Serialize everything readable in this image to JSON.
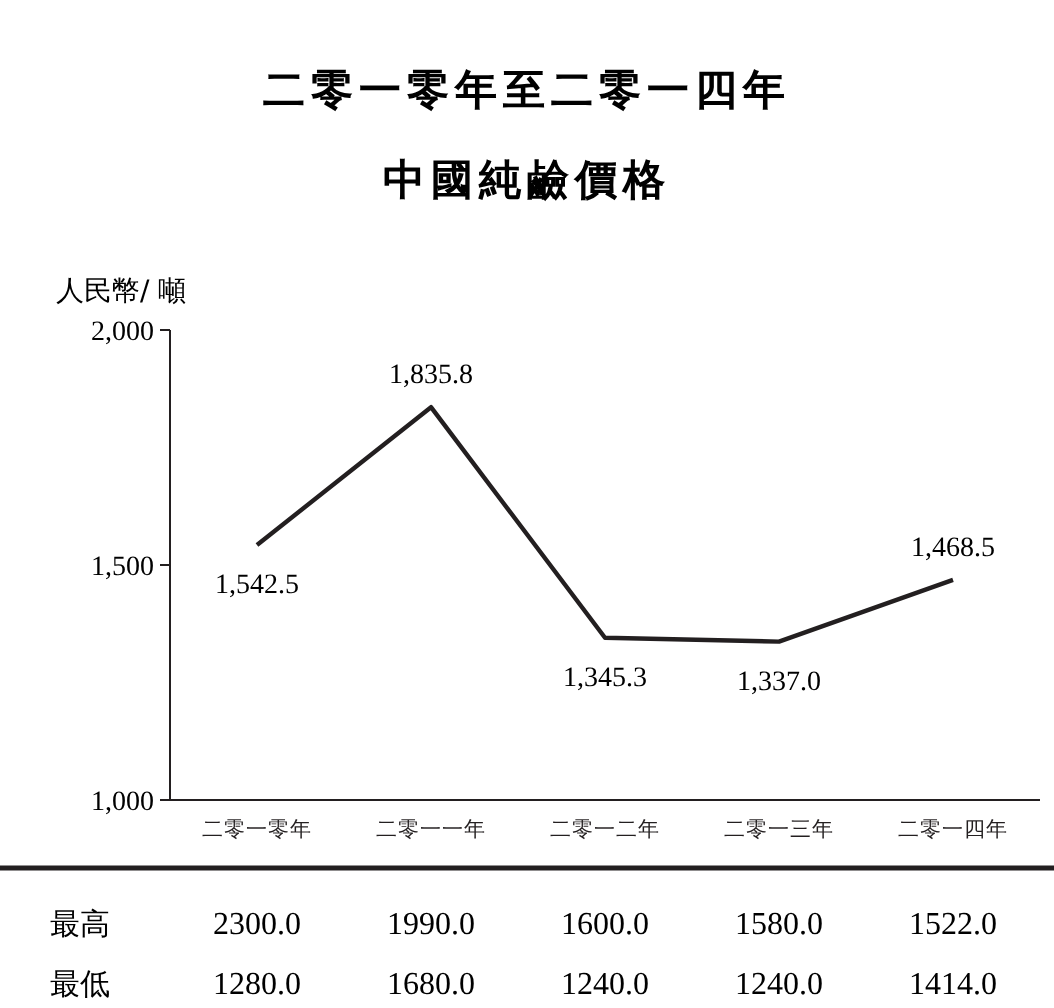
{
  "chart_data": [
    {
      "type": "line",
      "title": "二零一零年至二零一四年",
      "subtitle": "中國純鹼價格",
      "ylabel": "人民幣/ 噸",
      "categories": [
        "二零一零年",
        "二零一一年",
        "二零一二年",
        "二零一三年",
        "二零一四年"
      ],
      "series": [
        {
          "color": "#231f20",
          "values": [
            1542.5,
            1835.8,
            1345.3,
            1337.0,
            1468.5
          ],
          "value_labels": [
            "1,542.5",
            "1,835.8",
            "1,345.3",
            "1,337.0",
            "1,468.5"
          ]
        }
      ],
      "ylim": [
        1000,
        2000
      ],
      "yticks": [
        {
          "value": 1000,
          "label": "1,000"
        },
        {
          "value": 1500,
          "label": "1,500"
        },
        {
          "value": 2000,
          "label": "2,000"
        }
      ],
      "grid": false,
      "marker": "none",
      "line_style": "solid"
    },
    {
      "type": "heatmap",
      "categories": [
        null,
        null,
        null,
        null,
        null
      ],
      "y_categories": [
        "最高",
        "最低"
      ],
      "cells": [
        [
          2300.0,
          1990.0,
          1600.0,
          1580.0,
          1522.0
        ],
        [
          1280.0,
          1680.0,
          1240.0,
          1240.0,
          1414.0
        ]
      ],
      "cell_labels": [
        [
          "2300.0",
          "1990.0",
          "1600.0",
          "1580.0",
          "1522.0"
        ],
        [
          "1280.0",
          "1680.0",
          "1240.0",
          "1240.0",
          "1414.0"
        ]
      ]
    }
  ]
}
